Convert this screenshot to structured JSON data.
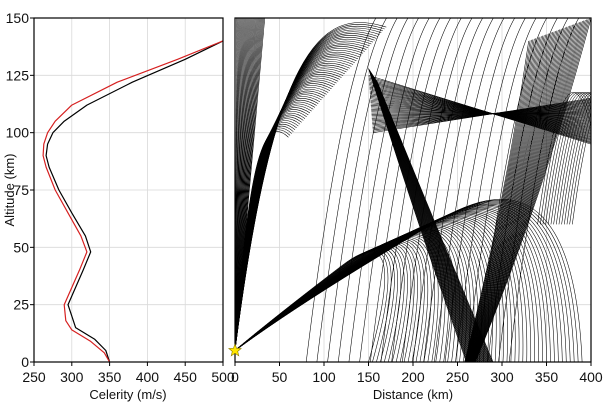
{
  "chart_data": [
    {
      "type": "line",
      "xlabel": "Celerity (m/s)",
      "ylabel": "Altitude (km)",
      "xlim": [
        250,
        500
      ],
      "ylim": [
        0,
        150
      ],
      "x_ticks": [
        250,
        300,
        350,
        400,
        450,
        500
      ],
      "y_ticks": [
        0,
        25,
        50,
        75,
        100,
        125,
        150
      ],
      "grid": true,
      "series": [
        {
          "color": "#000000",
          "x": [
            350,
            345,
            330,
            305,
            300,
            295,
            315,
            325,
            318,
            300,
            283,
            270,
            266,
            268,
            275,
            290,
            320,
            380,
            450,
            500
          ],
          "y": [
            0,
            5,
            10,
            15,
            20,
            25,
            40,
            48,
            55,
            65,
            75,
            85,
            90,
            95,
            100,
            105,
            112,
            122,
            132,
            140
          ]
        },
        {
          "color": "#d62020",
          "x": [
            350,
            343,
            325,
            300,
            292,
            290,
            310,
            320,
            312,
            295,
            278,
            266,
            262,
            263,
            268,
            278,
            300,
            360,
            440,
            500
          ],
          "y": [
            0,
            4,
            9,
            14,
            18,
            25,
            40,
            48,
            55,
            65,
            75,
            85,
            90,
            95,
            100,
            105,
            112,
            122,
            132,
            140
          ]
        }
      ]
    },
    {
      "type": "line",
      "xlabel": "Distance (km)",
      "xlim": [
        0,
        400
      ],
      "ylim": [
        0,
        150
      ],
      "x_ticks": [
        0,
        50,
        100,
        150,
        200,
        250,
        300,
        350,
        400
      ],
      "y_ticks": [
        0,
        25,
        50,
        75,
        100,
        125,
        150
      ],
      "grid": true,
      "source_marker": {
        "shape": "star",
        "color": "#ffe600",
        "x": 0,
        "y": 5
      }
    }
  ]
}
